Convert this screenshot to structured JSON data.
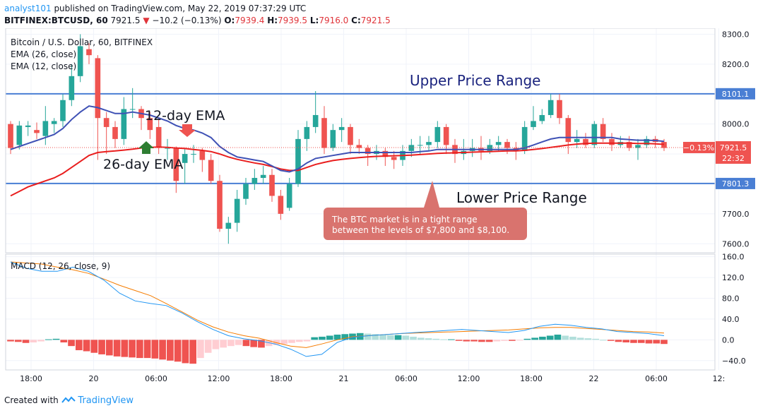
{
  "header": {
    "user": "analyst101",
    "published": "published on TradingView.com, May 22, 2019 07:37:29 UTC",
    "symbol": "BITFINEX:BTCUSD, 60",
    "price": "7921.5",
    "change_arrow": "▼",
    "change": "−10.2 (−0.13%)",
    "o_label": "O:",
    "o_value": "7939.4",
    "h_label": "H:",
    "h_value": "7939.5",
    "l_label": "L:",
    "l_value": "7916.0",
    "c_label": "C:",
    "c_value": "7921.5"
  },
  "legend": {
    "title": "Bitcoin / U.S. Dollar, 60, BITFINEX",
    "ema26": "EMA (26, close)",
    "ema12": "EMA (12, close)",
    "macd": "MACD (12, 26, close, 9)"
  },
  "annotations": {
    "upper": "Upper Price Range",
    "lower": "Lower Price Range",
    "ema12": "12-day EMA",
    "ema26": "26-day EMA",
    "callout_line1": "The BTC market is in a tight range",
    "callout_line2": "between the levels of $7,800 and $8,100."
  },
  "footer": {
    "created": "Created with",
    "brand": "TradingView"
  },
  "colors": {
    "up": "#26a69a",
    "down": "#ef5350",
    "ema12": "#3f51b5",
    "ema26": "#e91e1e",
    "macd": "#2196f3",
    "signal": "#f57c00",
    "hline": "#4a7fd4",
    "hist_up_strong": "#26a69a",
    "hist_up_weak": "#b2dfdb",
    "hist_down_strong": "#ef5350",
    "hist_down_weak": "#ffcdd2",
    "callout": "#d9736e"
  },
  "chart_data": [
    {
      "type": "candlestick",
      "title": "Bitcoin / U.S. Dollar, 60, BITFINEX",
      "ylim": [
        7570,
        8320
      ],
      "y_ticks": [
        7600,
        7700,
        7800,
        7900,
        8000,
        8100,
        8200,
        8300
      ],
      "y_tick_labels": [
        "7600.0",
        "7700.0",
        "7800.0",
        "7900.0",
        "8000.0",
        "8100.0",
        "8200.0",
        "8300.0"
      ],
      "x_ticks": [
        "18:00",
        "20",
        "06:00",
        "12:00",
        "18:00",
        "21",
        "06:00",
        "12:00",
        "18:00",
        "22",
        "06:00",
        "12:"
      ],
      "horizontal_lines": [
        {
          "value": 8101.1,
          "label": "8101.1"
        },
        {
          "value": 7801.3,
          "label": "7801.3"
        }
      ],
      "last_price": {
        "value": 7921.5,
        "label": "7921.5",
        "change_label": "−0.13%",
        "countdown": "22:32"
      },
      "candles": [
        [
          8000,
          7920,
          8010,
          7900
        ],
        [
          7930,
          7995,
          8010,
          7915
        ],
        [
          7990,
          7995,
          8010,
          7960
        ],
        [
          7980,
          7970,
          8005,
          7950
        ],
        [
          7960,
          8010,
          8060,
          7930
        ],
        [
          8000,
          8010,
          8020,
          7970
        ],
        [
          8010,
          8080,
          8100,
          7990
        ],
        [
          8080,
          8160,
          8200,
          8060
        ],
        [
          8160,
          8260,
          8300,
          8140
        ],
        [
          8250,
          8230,
          8270,
          8200
        ],
        [
          8220,
          8020,
          8230,
          7880
        ],
        [
          8020,
          7990,
          8040,
          7900
        ],
        [
          7990,
          7950,
          8010,
          7920
        ],
        [
          7950,
          8050,
          8090,
          7930
        ],
        [
          8050,
          8050,
          8120,
          8020
        ],
        [
          8050,
          8020,
          8060,
          7980
        ],
        [
          8020,
          7980,
          8040,
          7950
        ],
        [
          7990,
          7920,
          8020,
          7900
        ],
        [
          7920,
          7920,
          7950,
          7880
        ],
        [
          7920,
          7810,
          7925,
          7770
        ],
        [
          7870,
          7900,
          7920,
          7800
        ],
        [
          7900,
          7900,
          7930,
          7870
        ],
        [
          7910,
          7880,
          7920,
          7840
        ],
        [
          7880,
          7810,
          7900,
          7800
        ],
        [
          7810,
          7650,
          7830,
          7640
        ],
        [
          7650,
          7670,
          7690,
          7600
        ],
        [
          7670,
          7750,
          7780,
          7640
        ],
        [
          7750,
          7800,
          7820,
          7730
        ],
        [
          7800,
          7820,
          7850,
          7780
        ],
        [
          7820,
          7830,
          7860,
          7800
        ],
        [
          7830,
          7760,
          7850,
          7740
        ],
        [
          7760,
          7700,
          7780,
          7680
        ],
        [
          7720,
          7800,
          7820,
          7710
        ],
        [
          7800,
          7950,
          7980,
          7790
        ],
        [
          7950,
          7990,
          8010,
          7910
        ],
        [
          7990,
          8030,
          8110,
          7970
        ],
        [
          8020,
          7920,
          8060,
          7900
        ],
        [
          7920,
          7980,
          8000,
          7910
        ],
        [
          7980,
          7990,
          8020,
          7940
        ],
        [
          7990,
          7930,
          8000,
          7900
        ],
        [
          7930,
          7920,
          7950,
          7900
        ],
        [
          7920,
          7900,
          7930,
          7860
        ],
        [
          7900,
          7910,
          7930,
          7880
        ],
        [
          7910,
          7890,
          7920,
          7860
        ],
        [
          7890,
          7880,
          7910,
          7850
        ],
        [
          7880,
          7910,
          7930,
          7860
        ],
        [
          7910,
          7930,
          7950,
          7890
        ],
        [
          7930,
          7930,
          7960,
          7900
        ],
        [
          7930,
          7940,
          7960,
          7910
        ],
        [
          7940,
          7990,
          8010,
          7920
        ],
        [
          7990,
          7930,
          8000,
          7900
        ],
        [
          7930,
          7900,
          7950,
          7870
        ],
        [
          7900,
          7910,
          7950,
          7880
        ],
        [
          7910,
          7920,
          7950,
          7890
        ],
        [
          7920,
          7910,
          7960,
          7880
        ],
        [
          7910,
          7930,
          7950,
          7900
        ],
        [
          7930,
          7940,
          7960,
          7910
        ],
        [
          7940,
          7920,
          7950,
          7900
        ],
        [
          7920,
          7910,
          7940,
          7880
        ],
        [
          7910,
          7990,
          8010,
          7900
        ],
        [
          7990,
          8010,
          8060,
          7980
        ],
        [
          8010,
          8030,
          8050,
          8000
        ],
        [
          8030,
          8080,
          8100,
          8020
        ],
        [
          8080,
          8020,
          8100,
          8000
        ],
        [
          8020,
          7940,
          8030,
          7900
        ],
        [
          7940,
          7950,
          7980,
          7920
        ],
        [
          7950,
          7930,
          7970,
          7920
        ],
        [
          7930,
          8000,
          8010,
          7920
        ],
        [
          8000,
          7950,
          8020,
          7940
        ],
        [
          7950,
          7930,
          7970,
          7910
        ],
        [
          7930,
          7940,
          7960,
          7920
        ],
        [
          7940,
          7920,
          7960,
          7910
        ],
        [
          7920,
          7930,
          7950,
          7880
        ],
        [
          7930,
          7950,
          7960,
          7920
        ],
        [
          7950,
          7940,
          7960,
          7920
        ],
        [
          7940,
          7920,
          7950,
          7910
        ]
      ],
      "series": [
        {
          "name": "EMA (12, close)",
          "values": [
            7915,
            7925,
            7935,
            7945,
            7955,
            7965,
            7985,
            8015,
            8040,
            8060,
            8055,
            8045,
            8035,
            8035,
            8040,
            8035,
            8030,
            8020,
            8010,
            7995,
            7985,
            7980,
            7970,
            7955,
            7925,
            7905,
            7890,
            7885,
            7880,
            7875,
            7860,
            7845,
            7840,
            7850,
            7870,
            7885,
            7890,
            7895,
            7900,
            7905,
            7905,
            7905,
            7905,
            7905,
            7905,
            7905,
            7905,
            7908,
            7910,
            7915,
            7915,
            7915,
            7915,
            7915,
            7915,
            7915,
            7915,
            7915,
            7915,
            7920,
            7930,
            7940,
            7950,
            7955,
            7955,
            7955,
            7955,
            7955,
            7955,
            7955,
            7950,
            7948,
            7946,
            7946,
            7945,
            7942
          ]
        },
        {
          "name": "EMA (26, close)",
          "values": [
            7760,
            7775,
            7790,
            7800,
            7810,
            7820,
            7835,
            7855,
            7875,
            7895,
            7905,
            7908,
            7910,
            7913,
            7916,
            7920,
            7922,
            7923,
            7922,
            7920,
            7918,
            7915,
            7912,
            7908,
            7900,
            7890,
            7882,
            7876,
            7870,
            7865,
            7858,
            7850,
            7845,
            7845,
            7855,
            7865,
            7872,
            7878,
            7882,
            7885,
            7888,
            7890,
            7892,
            7893,
            7894,
            7895,
            7896,
            7898,
            7900,
            7902,
            7903,
            7904,
            7905,
            7906,
            7907,
            7908,
            7909,
            7910,
            7910,
            7912,
            7915,
            7918,
            7922,
            7926,
            7930,
            7933,
            7935,
            7936,
            7936,
            7936,
            7936,
            7936,
            7935,
            7935,
            7934,
            7932
          ]
        }
      ]
    },
    {
      "type": "line",
      "title": "MACD (12, 26, close, 9)",
      "ylim": [
        -58,
        165
      ],
      "y_ticks": [
        -40,
        0,
        40,
        80,
        120,
        160
      ],
      "y_tick_labels": [
        "−40.0",
        "0.0",
        "40.0",
        "80.0",
        "120.0",
        "160.0"
      ],
      "series": [
        {
          "name": "MACD",
          "values": [
            150,
            138,
            132,
            132,
            140,
            132,
            115,
            90,
            75,
            70,
            66,
            52,
            35,
            20,
            8,
            2,
            -2,
            -8,
            -18,
            -32,
            -28,
            -5,
            5,
            8,
            10,
            12,
            14,
            16,
            18,
            20,
            18,
            16,
            14,
            18,
            26,
            30,
            28,
            24,
            21,
            16,
            14,
            12,
            8
          ]
        },
        {
          "name": "Signal",
          "values": [
            150,
            148,
            146,
            140,
            135,
            128,
            117,
            105,
            95,
            85,
            70,
            54,
            38,
            25,
            15,
            8,
            3,
            -5,
            -12,
            -15,
            -8,
            0,
            6,
            8,
            10,
            12,
            13,
            14,
            15,
            16,
            17,
            18,
            19,
            21,
            23,
            24,
            24,
            22,
            20,
            18,
            16,
            15,
            13
          ]
        }
      ],
      "histogram": [
        -3,
        -4,
        -6,
        -5,
        -3,
        1,
        2,
        -5,
        -12,
        -20,
        -22,
        -25,
        -28,
        -30,
        -32,
        -33,
        -34,
        -35,
        -35,
        -36,
        -38,
        -40,
        -42,
        -45,
        -46,
        -35,
        -25,
        -18,
        -15,
        -12,
        -10,
        -12,
        -14,
        -15,
        -12,
        -10,
        -8,
        -6,
        -4,
        -3,
        5,
        6,
        8,
        10,
        11,
        12,
        13,
        12,
        11,
        10,
        9,
        9,
        8,
        6,
        4,
        3,
        2,
        1,
        1,
        -2,
        -3,
        -3,
        -4,
        -4,
        -3,
        -2,
        -2,
        -1,
        2,
        4,
        6,
        8,
        10,
        8,
        6,
        4,
        3,
        2,
        0,
        -2,
        -4,
        -5,
        -6,
        -6,
        -7,
        -7,
        -8
      ]
    }
  ]
}
